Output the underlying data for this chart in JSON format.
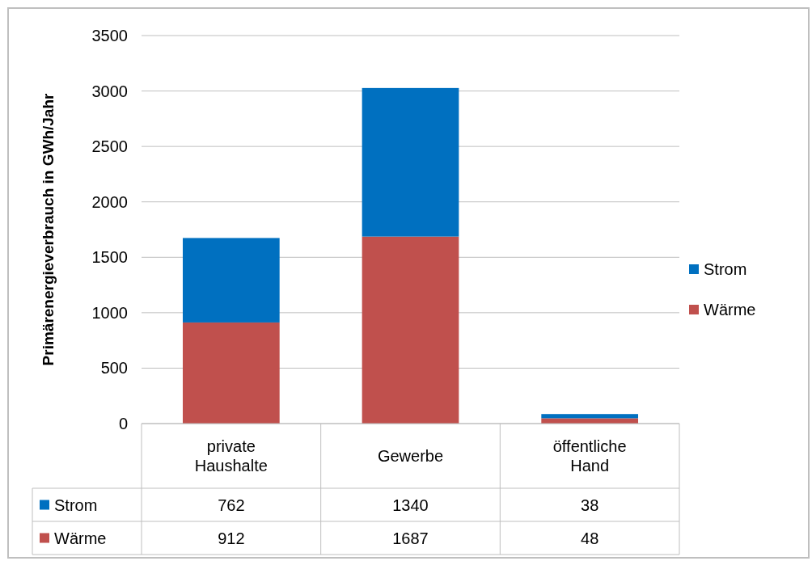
{
  "chart_data": {
    "type": "bar",
    "stacked": true,
    "ylabel": "Primärenergieverbrauch in GWh/Jahr",
    "categories": [
      "private Haushalte",
      "Gewerbe",
      "öffentliche Hand"
    ],
    "series": [
      {
        "name": "Wärme",
        "color": "#c0504d",
        "values": [
          912,
          1687,
          48
        ]
      },
      {
        "name": "Strom",
        "color": "#0070c0",
        "values": [
          762,
          1340,
          38
        ]
      }
    ],
    "ylim": [
      0,
      3500
    ],
    "yticks": [
      0,
      500,
      1000,
      1500,
      2000,
      2500,
      3000,
      3500
    ],
    "grid": "y",
    "legend": "right",
    "data_labels": true
  }
}
